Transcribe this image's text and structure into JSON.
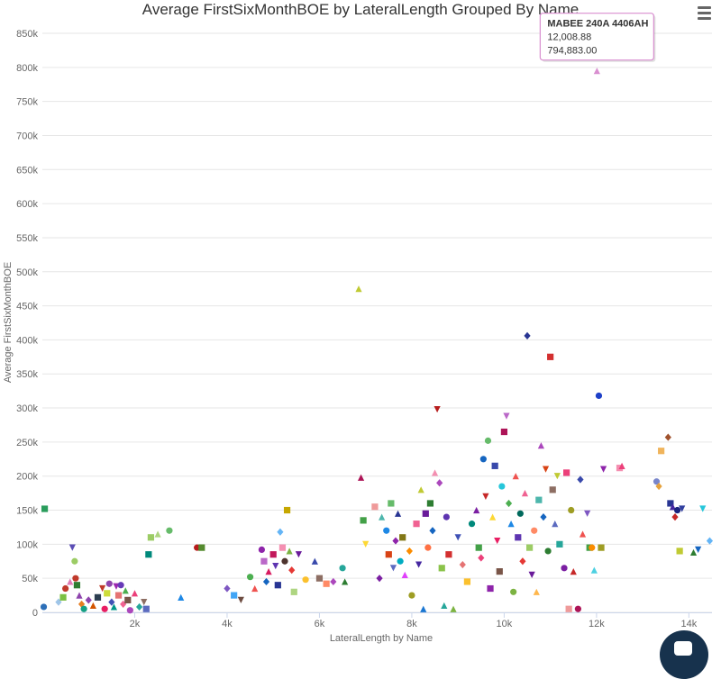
{
  "chart_data": {
    "type": "scatter",
    "title": "Average FirstSixMonthBOE by LateralLength Grouped By Name",
    "xlabel": "LateralLength by Name",
    "ylabel": "Average FirstSixMonthBOE",
    "xlim": [
      0,
      14500
    ],
    "ylim": [
      0,
      850000
    ],
    "x_ticks": [
      2000,
      4000,
      6000,
      8000,
      10000,
      12000,
      14000
    ],
    "x_tick_labels": [
      "2k",
      "4k",
      "6k",
      "8k",
      "10k",
      "12k",
      "14k"
    ],
    "y_ticks": [
      0,
      50000,
      100000,
      150000,
      200000,
      250000,
      300000,
      350000,
      400000,
      450000,
      500000,
      550000,
      600000,
      650000,
      700000,
      750000,
      800000,
      850000
    ],
    "y_tick_labels": [
      "0",
      "50k",
      "100k",
      "150k",
      "200k",
      "250k",
      "300k",
      "350k",
      "400k",
      "450k",
      "500k",
      "550k",
      "600k",
      "650k",
      "700k",
      "750k",
      "800k",
      "850k"
    ],
    "grid": {
      "horizontal": true,
      "vertical": false
    },
    "legend": "none",
    "points": [
      {
        "x": 50,
        "y": 152000,
        "c": "#2a9d5c",
        "s": "square"
      },
      {
        "x": 30,
        "y": 8000,
        "c": "#2d6fb8",
        "s": "circle"
      },
      {
        "x": 350,
        "y": 15000,
        "c": "#9fc5e8",
        "s": "diamond"
      },
      {
        "x": 450,
        "y": 22000,
        "c": "#7bc043",
        "s": "square"
      },
      {
        "x": 500,
        "y": 35000,
        "c": "#c0392b",
        "s": "circle"
      },
      {
        "x": 600,
        "y": 45000,
        "c": "#e07bb5",
        "s": "triangle"
      },
      {
        "x": 650,
        "y": 95000,
        "c": "#5b4db5",
        "s": "triangle-down"
      },
      {
        "x": 700,
        "y": 75000,
        "c": "#9ccc65",
        "s": "circle"
      },
      {
        "x": 720,
        "y": 50000,
        "c": "#c0392b",
        "s": "circle"
      },
      {
        "x": 750,
        "y": 40000,
        "c": "#2e7d32",
        "s": "square"
      },
      {
        "x": 800,
        "y": 25000,
        "c": "#8e44ad",
        "s": "triangle"
      },
      {
        "x": 850,
        "y": 12000,
        "c": "#e67e22",
        "s": "diamond"
      },
      {
        "x": 900,
        "y": 5000,
        "c": "#16a085",
        "s": "circle"
      },
      {
        "x": 1000,
        "y": 18000,
        "c": "#8e44ad",
        "s": "diamond"
      },
      {
        "x": 1100,
        "y": 10000,
        "c": "#d35400",
        "s": "triangle"
      },
      {
        "x": 1200,
        "y": 22000,
        "c": "#2c3e50",
        "s": "square"
      },
      {
        "x": 1300,
        "y": 35000,
        "c": "#c0392b",
        "s": "triangle-down"
      },
      {
        "x": 1350,
        "y": 5000,
        "c": "#e91e63",
        "s": "circle"
      },
      {
        "x": 1400,
        "y": 28000,
        "c": "#cddc39",
        "s": "square"
      },
      {
        "x": 1450,
        "y": 42000,
        "c": "#8e44ad",
        "s": "circle"
      },
      {
        "x": 1500,
        "y": 15000,
        "c": "#3f51b5",
        "s": "diamond"
      },
      {
        "x": 1550,
        "y": 8000,
        "c": "#009688",
        "s": "triangle"
      },
      {
        "x": 1600,
        "y": 38000,
        "c": "#9c27b0",
        "s": "triangle-down"
      },
      {
        "x": 1650,
        "y": 25000,
        "c": "#e57373",
        "s": "square"
      },
      {
        "x": 1700,
        "y": 40000,
        "c": "#673ab7",
        "s": "circle"
      },
      {
        "x": 1750,
        "y": 12000,
        "c": "#f06292",
        "s": "diamond"
      },
      {
        "x": 1800,
        "y": 32000,
        "c": "#4caf50",
        "s": "triangle"
      },
      {
        "x": 1850,
        "y": 18000,
        "c": "#795548",
        "s": "square"
      },
      {
        "x": 1900,
        "y": 3000,
        "c": "#ab47bc",
        "s": "circle"
      },
      {
        "x": 2000,
        "y": 28000,
        "c": "#ec407a",
        "s": "triangle"
      },
      {
        "x": 2100,
        "y": 8000,
        "c": "#26a69a",
        "s": "diamond"
      },
      {
        "x": 2200,
        "y": 15000,
        "c": "#8d6e63",
        "s": "triangle-down"
      },
      {
        "x": 2250,
        "y": 5000,
        "c": "#5c6bc0",
        "s": "square"
      },
      {
        "x": 2350,
        "y": 110000,
        "c": "#9ccc65",
        "s": "square"
      },
      {
        "x": 2500,
        "y": 115000,
        "c": "#aed581",
        "s": "triangle"
      },
      {
        "x": 2750,
        "y": 120000,
        "c": "#66bb6a",
        "s": "circle"
      },
      {
        "x": 2300,
        "y": 85000,
        "c": "#00897b",
        "s": "square"
      },
      {
        "x": 3000,
        "y": 22000,
        "c": "#1e88e5",
        "s": "triangle"
      },
      {
        "x": 3350,
        "y": 95000,
        "c": "#b71c1c",
        "s": "circle"
      },
      {
        "x": 3450,
        "y": 95000,
        "c": "#558b2f",
        "s": "square"
      },
      {
        "x": 4000,
        "y": 35000,
        "c": "#7e57c2",
        "s": "diamond"
      },
      {
        "x": 4150,
        "y": 25000,
        "c": "#42a5f5",
        "s": "square"
      },
      {
        "x": 4300,
        "y": 18000,
        "c": "#6d4c41",
        "s": "triangle-down"
      },
      {
        "x": 4500,
        "y": 52000,
        "c": "#4caf50",
        "s": "circle"
      },
      {
        "x": 4600,
        "y": 35000,
        "c": "#ef5350",
        "s": "triangle"
      },
      {
        "x": 4750,
        "y": 92000,
        "c": "#8e24aa",
        "s": "circle"
      },
      {
        "x": 4800,
        "y": 75000,
        "c": "#ba68c8",
        "s": "square"
      },
      {
        "x": 4850,
        "y": 45000,
        "c": "#1565c0",
        "s": "diamond"
      },
      {
        "x": 4900,
        "y": 60000,
        "c": "#d81b60",
        "s": "triangle"
      },
      {
        "x": 5000,
        "y": 85000,
        "c": "#c2185b",
        "s": "square"
      },
      {
        "x": 5050,
        "y": 68000,
        "c": "#5e35b1",
        "s": "triangle-down"
      },
      {
        "x": 5100,
        "y": 40000,
        "c": "#283593",
        "s": "square"
      },
      {
        "x": 5150,
        "y": 118000,
        "c": "#64b5f6",
        "s": "diamond"
      },
      {
        "x": 5200,
        "y": 95000,
        "c": "#f48fb1",
        "s": "square"
      },
      {
        "x": 5250,
        "y": 75000,
        "c": "#4e342e",
        "s": "circle"
      },
      {
        "x": 5300,
        "y": 150000,
        "c": "#c6a700",
        "s": "square"
      },
      {
        "x": 5350,
        "y": 90000,
        "c": "#7cb342",
        "s": "triangle"
      },
      {
        "x": 5400,
        "y": 62000,
        "c": "#e53935",
        "s": "diamond"
      },
      {
        "x": 5450,
        "y": 30000,
        "c": "#aed581",
        "s": "square"
      },
      {
        "x": 5550,
        "y": 85000,
        "c": "#6a1b9a",
        "s": "triangle-down"
      },
      {
        "x": 5700,
        "y": 48000,
        "c": "#fbc02d",
        "s": "circle"
      },
      {
        "x": 5900,
        "y": 75000,
        "c": "#3949ab",
        "s": "triangle"
      },
      {
        "x": 6000,
        "y": 50000,
        "c": "#8d6e63",
        "s": "square"
      },
      {
        "x": 6150,
        "y": 42000,
        "c": "#ff8a65",
        "s": "square"
      },
      {
        "x": 6300,
        "y": 45000,
        "c": "#ab47bc",
        "s": "diamond"
      },
      {
        "x": 6500,
        "y": 65000,
        "c": "#26a69a",
        "s": "circle"
      },
      {
        "x": 6550,
        "y": 45000,
        "c": "#2e7d32",
        "s": "triangle"
      },
      {
        "x": 6850,
        "y": 475000,
        "c": "#c0ca33",
        "s": "triangle"
      },
      {
        "x": 6900,
        "y": 198000,
        "c": "#ad1457",
        "s": "triangle"
      },
      {
        "x": 6950,
        "y": 135000,
        "c": "#43a047",
        "s": "square"
      },
      {
        "x": 7000,
        "y": 100000,
        "c": "#fdd835",
        "s": "triangle-down"
      },
      {
        "x": 7200,
        "y": 155000,
        "c": "#ef9a9a",
        "s": "square"
      },
      {
        "x": 7300,
        "y": 50000,
        "c": "#7b1fa2",
        "s": "diamond"
      },
      {
        "x": 7350,
        "y": 140000,
        "c": "#4db6ac",
        "s": "triangle"
      },
      {
        "x": 7450,
        "y": 120000,
        "c": "#1e88e5",
        "s": "circle"
      },
      {
        "x": 7500,
        "y": 85000,
        "c": "#d84315",
        "s": "square"
      },
      {
        "x": 7550,
        "y": 160000,
        "c": "#66bb6a",
        "s": "square"
      },
      {
        "x": 7600,
        "y": 65000,
        "c": "#5c6bc0",
        "s": "triangle-down"
      },
      {
        "x": 7650,
        "y": 105000,
        "c": "#8e24aa",
        "s": "diamond"
      },
      {
        "x": 7700,
        "y": 145000,
        "c": "#283593",
        "s": "triangle"
      },
      {
        "x": 7750,
        "y": 75000,
        "c": "#00acc1",
        "s": "circle"
      },
      {
        "x": 7800,
        "y": 110000,
        "c": "#827717",
        "s": "square"
      },
      {
        "x": 7850,
        "y": 55000,
        "c": "#e040fb",
        "s": "triangle"
      },
      {
        "x": 7950,
        "y": 90000,
        "c": "#fb8c00",
        "s": "diamond"
      },
      {
        "x": 8000,
        "y": 25000,
        "c": "#9e9d24",
        "s": "circle"
      },
      {
        "x": 8100,
        "y": 130000,
        "c": "#f06292",
        "s": "square"
      },
      {
        "x": 8150,
        "y": 70000,
        "c": "#4527a0",
        "s": "triangle-down"
      },
      {
        "x": 8200,
        "y": 180000,
        "c": "#c0ca33",
        "s": "triangle"
      },
      {
        "x": 8250,
        "y": 5000,
        "c": "#1976d2",
        "s": "triangle"
      },
      {
        "x": 8300,
        "y": 145000,
        "c": "#6a1b9a",
        "s": "square"
      },
      {
        "x": 8350,
        "y": 95000,
        "c": "#ff7043",
        "s": "circle"
      },
      {
        "x": 8400,
        "y": 160000,
        "c": "#2e7d32",
        "s": "square"
      },
      {
        "x": 8450,
        "y": 120000,
        "c": "#1565c0",
        "s": "diamond"
      },
      {
        "x": 8500,
        "y": 205000,
        "c": "#f48fb1",
        "s": "triangle"
      },
      {
        "x": 8550,
        "y": 298000,
        "c": "#b71c1c",
        "s": "triangle-down"
      },
      {
        "x": 8600,
        "y": 190000,
        "c": "#ab47bc",
        "s": "diamond"
      },
      {
        "x": 8650,
        "y": 65000,
        "c": "#8bc34a",
        "s": "square"
      },
      {
        "x": 8700,
        "y": 10000,
        "c": "#26a69a",
        "s": "triangle"
      },
      {
        "x": 8750,
        "y": 140000,
        "c": "#5e35b1",
        "s": "circle"
      },
      {
        "x": 8800,
        "y": 85000,
        "c": "#d32f2f",
        "s": "square"
      },
      {
        "x": 8900,
        "y": 5000,
        "c": "#7cb342",
        "s": "triangle"
      },
      {
        "x": 9000,
        "y": 110000,
        "c": "#3f51b5",
        "s": "triangle-down"
      },
      {
        "x": 9100,
        "y": 70000,
        "c": "#e57373",
        "s": "diamond"
      },
      {
        "x": 9200,
        "y": 45000,
        "c": "#fbc02d",
        "s": "square"
      },
      {
        "x": 9300,
        "y": 130000,
        "c": "#00897b",
        "s": "circle"
      },
      {
        "x": 9400,
        "y": 150000,
        "c": "#7b1fa2",
        "s": "triangle"
      },
      {
        "x": 9450,
        "y": 95000,
        "c": "#43a047",
        "s": "square"
      },
      {
        "x": 9500,
        "y": 80000,
        "c": "#ec407a",
        "s": "diamond"
      },
      {
        "x": 9550,
        "y": 225000,
        "c": "#1565c0",
        "s": "circle"
      },
      {
        "x": 9600,
        "y": 170000,
        "c": "#c62828",
        "s": "triangle-down"
      },
      {
        "x": 9650,
        "y": 252000,
        "c": "#66bb6a",
        "s": "circle"
      },
      {
        "x": 9700,
        "y": 35000,
        "c": "#8e24aa",
        "s": "square"
      },
      {
        "x": 9750,
        "y": 140000,
        "c": "#fdd835",
        "s": "triangle"
      },
      {
        "x": 9800,
        "y": 215000,
        "c": "#3949ab",
        "s": "square"
      },
      {
        "x": 9850,
        "y": 105000,
        "c": "#e91e63",
        "s": "triangle-down"
      },
      {
        "x": 9900,
        "y": 60000,
        "c": "#795548",
        "s": "square"
      },
      {
        "x": 9950,
        "y": 185000,
        "c": "#26c6da",
        "s": "circle"
      },
      {
        "x": 10000,
        "y": 265000,
        "c": "#ad1457",
        "s": "square"
      },
      {
        "x": 10050,
        "y": 288000,
        "c": "#ba68c8",
        "s": "triangle-down"
      },
      {
        "x": 10100,
        "y": 160000,
        "c": "#4caf50",
        "s": "diamond"
      },
      {
        "x": 10150,
        "y": 130000,
        "c": "#1e88e5",
        "s": "triangle"
      },
      {
        "x": 10200,
        "y": 30000,
        "c": "#7cb342",
        "s": "circle"
      },
      {
        "x": 10250,
        "y": 200000,
        "c": "#ef5350",
        "s": "triangle"
      },
      {
        "x": 10300,
        "y": 110000,
        "c": "#5e35b1",
        "s": "square"
      },
      {
        "x": 10350,
        "y": 145000,
        "c": "#00695c",
        "s": "circle"
      },
      {
        "x": 10400,
        "y": 75000,
        "c": "#e53935",
        "s": "diamond"
      },
      {
        "x": 10450,
        "y": 175000,
        "c": "#f06292",
        "s": "triangle"
      },
      {
        "x": 10500,
        "y": 406000,
        "c": "#283593",
        "s": "diamond"
      },
      {
        "x": 10550,
        "y": 95000,
        "c": "#9ccc65",
        "s": "square"
      },
      {
        "x": 10600,
        "y": 55000,
        "c": "#6a1b9a",
        "s": "triangle-down"
      },
      {
        "x": 10650,
        "y": 120000,
        "c": "#ff8a65",
        "s": "circle"
      },
      {
        "x": 10700,
        "y": 30000,
        "c": "#ffb74d",
        "s": "triangle"
      },
      {
        "x": 10750,
        "y": 165000,
        "c": "#4db6ac",
        "s": "square"
      },
      {
        "x": 10800,
        "y": 245000,
        "c": "#ab47bc",
        "s": "triangle"
      },
      {
        "x": 10850,
        "y": 140000,
        "c": "#1565c0",
        "s": "diamond"
      },
      {
        "x": 10900,
        "y": 210000,
        "c": "#d84315",
        "s": "triangle-down"
      },
      {
        "x": 10950,
        "y": 90000,
        "c": "#2e7d32",
        "s": "circle"
      },
      {
        "x": 11000,
        "y": 375000,
        "c": "#d32f2f",
        "s": "square"
      },
      {
        "x": 11050,
        "y": 180000,
        "c": "#8d6e63",
        "s": "square"
      },
      {
        "x": 11100,
        "y": 130000,
        "c": "#5c6bc0",
        "s": "triangle"
      },
      {
        "x": 11150,
        "y": 200000,
        "c": "#c0ca33",
        "s": "triangle-down"
      },
      {
        "x": 11200,
        "y": 100000,
        "c": "#26a69a",
        "s": "square"
      },
      {
        "x": 11300,
        "y": 65000,
        "c": "#7b1fa2",
        "s": "circle"
      },
      {
        "x": 11350,
        "y": 205000,
        "c": "#ec407a",
        "s": "square"
      },
      {
        "x": 11400,
        "y": 5000,
        "c": "#ef9a9a",
        "s": "square"
      },
      {
        "x": 11450,
        "y": 150000,
        "c": "#9e9d24",
        "s": "circle"
      },
      {
        "x": 11500,
        "y": 60000,
        "c": "#c62828",
        "s": "triangle"
      },
      {
        "x": 11600,
        "y": 5000,
        "c": "#ad1457",
        "s": "circle"
      },
      {
        "x": 11650,
        "y": 195000,
        "c": "#3949ab",
        "s": "diamond"
      },
      {
        "x": 11700,
        "y": 115000,
        "c": "#ef5350",
        "s": "triangle"
      },
      {
        "x": 11800,
        "y": 145000,
        "c": "#7e57c2",
        "s": "triangle-down"
      },
      {
        "x": 11850,
        "y": 95000,
        "c": "#43a047",
        "s": "square"
      },
      {
        "x": 11900,
        "y": 95000,
        "c": "#fb8c00",
        "s": "circle"
      },
      {
        "x": 11950,
        "y": 62000,
        "c": "#4dd0e1",
        "s": "triangle"
      },
      {
        "x": 12008.88,
        "y": 794883.0,
        "c": "#d98fd0",
        "s": "triangle"
      },
      {
        "x": 12050,
        "y": 318000,
        "c": "#1e40c8",
        "s": "circle"
      },
      {
        "x": 12100,
        "y": 95000,
        "c": "#9e9d24",
        "s": "square"
      },
      {
        "x": 12150,
        "y": 210000,
        "c": "#8e24aa",
        "s": "triangle-down"
      },
      {
        "x": 12500,
        "y": 212000,
        "c": "#f48fb1",
        "s": "square"
      },
      {
        "x": 12550,
        "y": 215000,
        "c": "#ec407a",
        "s": "triangle"
      },
      {
        "x": 13300,
        "y": 192000,
        "c": "#7986cb",
        "s": "circle"
      },
      {
        "x": 13350,
        "y": 185000,
        "c": "#e6a23c",
        "s": "diamond"
      },
      {
        "x": 13400,
        "y": 237000,
        "c": "#f0b45c",
        "s": "square"
      },
      {
        "x": 13550,
        "y": 257000,
        "c": "#a0522d",
        "s": "diamond"
      },
      {
        "x": 13600,
        "y": 160000,
        "c": "#283593",
        "s": "square"
      },
      {
        "x": 13650,
        "y": 155000,
        "c": "#4527a0",
        "s": "triangle"
      },
      {
        "x": 13700,
        "y": 140000,
        "c": "#c62828",
        "s": "diamond"
      },
      {
        "x": 13750,
        "y": 150000,
        "c": "#1a237e",
        "s": "circle"
      },
      {
        "x": 13800,
        "y": 90000,
        "c": "#c0ca33",
        "s": "square"
      },
      {
        "x": 13850,
        "y": 152000,
        "c": "#303f9f",
        "s": "triangle-down"
      },
      {
        "x": 14100,
        "y": 88000,
        "c": "#2e7d32",
        "s": "triangle"
      },
      {
        "x": 14200,
        "y": 92000,
        "c": "#1565c0",
        "s": "triangle-down"
      },
      {
        "x": 14300,
        "y": 152000,
        "c": "#26c6da",
        "s": "triangle-down"
      },
      {
        "x": 14450,
        "y": 105000,
        "c": "#64b5f6",
        "s": "diamond"
      }
    ],
    "tooltip": {
      "name": "MABEE 240A 4406AH",
      "x_label": "12,008.88",
      "y_label": "794,883.00",
      "x": 12008.88,
      "y": 794883.0,
      "border_color": "#d98fd0"
    }
  },
  "colors": {
    "grid": "#e6e6e6",
    "axis_line": "#ccd6eb",
    "chat_button": "#17324d"
  },
  "icons": {
    "menu": "hamburger-menu-icon",
    "chat": "chat-bubble-icon"
  }
}
